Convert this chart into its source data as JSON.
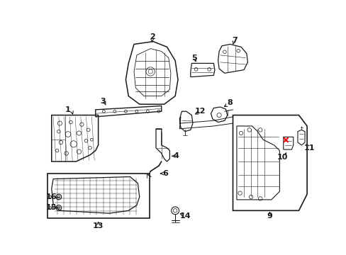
{
  "background_color": "#ffffff",
  "line_color": "#1a1a1a",
  "red_color": "#ff0000",
  "figsize": [
    4.89,
    3.6
  ],
  "dpi": 100,
  "xlim": [
    0,
    489
  ],
  "ylim": [
    0,
    360
  ]
}
